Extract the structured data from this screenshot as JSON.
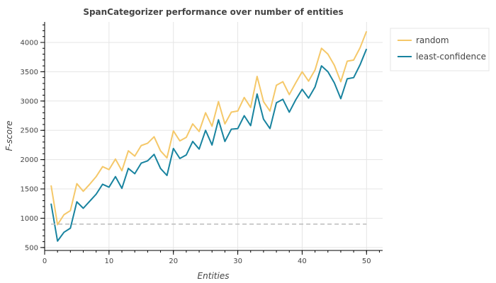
{
  "chart_data": {
    "type": "line",
    "title": "SpanCategorizer performance over number of entities",
    "xlabel": "Entities",
    "ylabel": "F-score",
    "xlim": [
      0,
      52.5
    ],
    "ylim": [
      450,
      4350
    ],
    "x_ticks": [
      0,
      10,
      20,
      30,
      40,
      50
    ],
    "y_ticks": [
      500,
      1000,
      1500,
      2000,
      2500,
      3000,
      3500,
      4000
    ],
    "x_tick_labels": [
      "0",
      "10",
      "20",
      "30",
      "40",
      "50"
    ],
    "y_tick_labels": [
      "500",
      "1000",
      "1500",
      "2000",
      "2500",
      "3000",
      "3500",
      "4000"
    ],
    "grid": true,
    "legend_position": "top-right outside",
    "x": [
      1,
      2,
      3,
      4,
      5,
      6,
      7,
      8,
      9,
      10,
      11,
      12,
      13,
      14,
      15,
      16,
      17,
      18,
      19,
      20,
      21,
      22,
      23,
      24,
      25,
      26,
      27,
      28,
      29,
      30,
      31,
      32,
      33,
      34,
      35,
      36,
      37,
      38,
      39,
      40,
      41,
      42,
      43,
      44,
      45,
      46,
      47,
      48,
      49,
      50
    ],
    "series": [
      {
        "name": "random",
        "color": "#f5c869",
        "values": [
          1560,
          890,
          1060,
          1130,
          1590,
          1460,
          1580,
          1710,
          1880,
          1830,
          2010,
          1810,
          2150,
          2060,
          2240,
          2280,
          2390,
          2150,
          2030,
          2490,
          2320,
          2380,
          2610,
          2480,
          2800,
          2570,
          2990,
          2610,
          2810,
          2830,
          3060,
          2890,
          3420,
          2990,
          2830,
          3270,
          3330,
          3110,
          3310,
          3500,
          3340,
          3530,
          3900,
          3800,
          3610,
          3330,
          3680,
          3700,
          3910,
          4190
        ]
      },
      {
        "name": "least-confidence",
        "color": "#18839f",
        "values": [
          1250,
          610,
          760,
          830,
          1280,
          1170,
          1290,
          1410,
          1580,
          1530,
          1710,
          1510,
          1850,
          1760,
          1940,
          1980,
          2090,
          1850,
          1730,
          2190,
          2020,
          2080,
          2310,
          2180,
          2500,
          2250,
          2680,
          2310,
          2520,
          2530,
          2750,
          2580,
          3120,
          2690,
          2530,
          2970,
          3030,
          2810,
          3020,
          3200,
          3050,
          3240,
          3600,
          3500,
          3310,
          3040,
          3380,
          3400,
          3620,
          3890
        ]
      },
      {
        "name": "",
        "color": "#bbbbbb",
        "dashed": true,
        "values": [
          900,
          900,
          900,
          900,
          900,
          900,
          900,
          900,
          900,
          900,
          900,
          900,
          900,
          900,
          900,
          900,
          900,
          900,
          900,
          900,
          900,
          900,
          900,
          900,
          900,
          900,
          900,
          900,
          900,
          900,
          900,
          900,
          900,
          900,
          900,
          900,
          900,
          900,
          900,
          900,
          900,
          900,
          900,
          900,
          900,
          900,
          900,
          900,
          900,
          900
        ]
      }
    ]
  }
}
